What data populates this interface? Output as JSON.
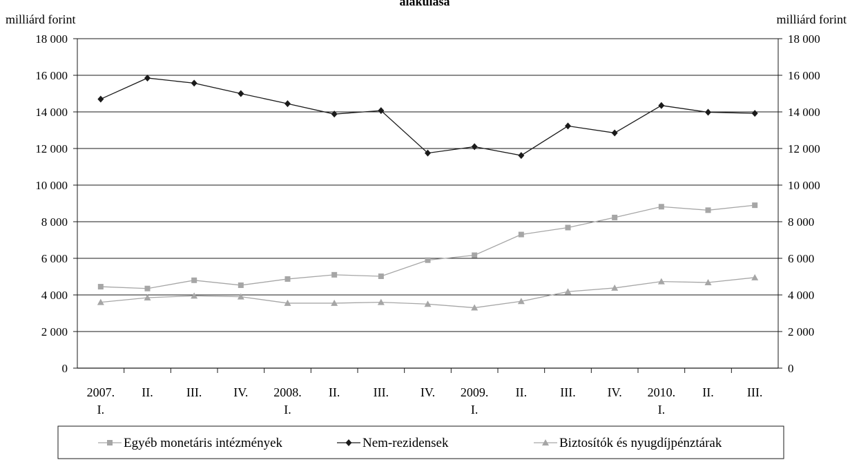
{
  "chart_data": {
    "type": "line",
    "title_fragment": "alakulása",
    "ylabel_left": "milliárd forint",
    "ylabel_right": "milliárd forint",
    "ylim": [
      0,
      18000
    ],
    "yticks": [
      0,
      2000,
      4000,
      6000,
      8000,
      10000,
      12000,
      14000,
      16000,
      18000
    ],
    "ytick_labels": [
      "0",
      "2 000",
      "4 000",
      "6 000",
      "8 000",
      "10 000",
      "12 000",
      "14 000",
      "16 000",
      "18 000"
    ],
    "grid": true,
    "legend_position": "bottom",
    "categories": [
      [
        "2007.",
        "I."
      ],
      [
        "II."
      ],
      [
        "III."
      ],
      [
        "IV."
      ],
      [
        "2008.",
        "I."
      ],
      [
        "II."
      ],
      [
        "III."
      ],
      [
        "IV."
      ],
      [
        "2009.",
        "I."
      ],
      [
        "II."
      ],
      [
        "III."
      ],
      [
        "IV."
      ],
      [
        "2010.",
        "I."
      ],
      [
        "II."
      ],
      [
        "III."
      ]
    ],
    "series": [
      {
        "name": "Egyéb monetáris intézmények",
        "marker": "square",
        "color": "#a6a6a6",
        "values": [
          4450,
          4350,
          4800,
          4530,
          4870,
          5100,
          5020,
          5900,
          6170,
          7300,
          7680,
          8230,
          8820,
          8630,
          8900
        ]
      },
      {
        "name": "Nem-rezidensek",
        "marker": "diamond",
        "color": "#1a1a1a",
        "values": [
          14700,
          15850,
          15570,
          15000,
          14450,
          13880,
          14070,
          11750,
          12100,
          11620,
          13230,
          12850,
          14350,
          13980,
          13920
        ]
      },
      {
        "name": "Biztosítók és nyugdíjpénztárak",
        "marker": "triangle",
        "color": "#a6a6a6",
        "values": [
          3600,
          3850,
          3950,
          3900,
          3550,
          3550,
          3600,
          3500,
          3300,
          3650,
          4180,
          4380,
          4730,
          4680,
          4950
        ]
      }
    ]
  }
}
